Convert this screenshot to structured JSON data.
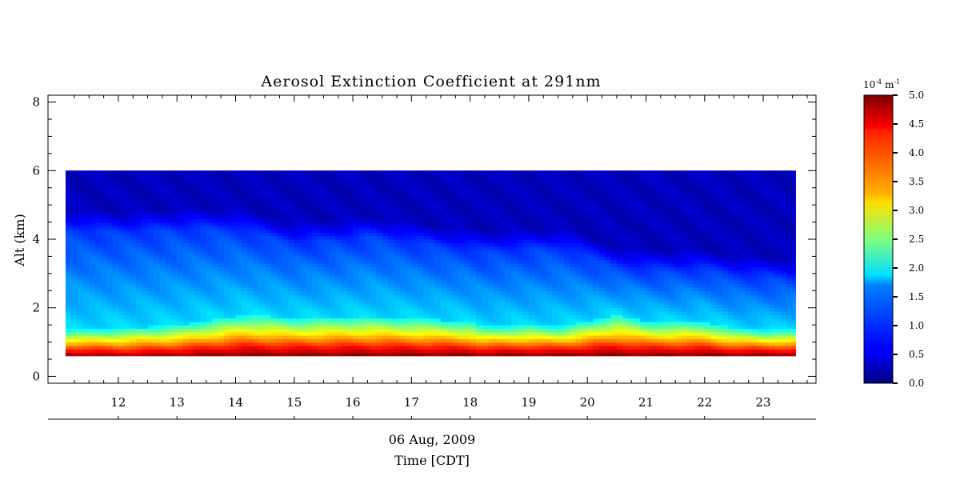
{
  "chart_data": {
    "type": "heatmap",
    "title": "Aerosol Extinction Coefficient at 291nm",
    "ylabel": "Alt (km)",
    "date_label": "06 Aug, 2009",
    "xlabel": "Time [CDT]",
    "xlim": [
      10.8,
      23.9
    ],
    "ylim": [
      -0.2,
      8.2
    ],
    "x_ticks": [
      12,
      13,
      14,
      15,
      16,
      17,
      18,
      19,
      20,
      21,
      22,
      23
    ],
    "y_ticks": [
      0,
      2,
      4,
      6,
      8
    ],
    "data_time_range": [
      11.1,
      23.55
    ],
    "data_alt_range": [
      0.6,
      6.0
    ],
    "colorbar": {
      "unit_base": "10",
      "unit_exp": "-4",
      "unit_m": "m",
      "unit_m_exp": "-1",
      "range": [
        0.0,
        5.0
      ],
      "ticks": [
        "0.0",
        "0.5",
        "1.0",
        "1.5",
        "2.0",
        "2.5",
        "3.0",
        "3.5",
        "4.0",
        "4.5",
        "5.0"
      ],
      "colormap": "jet"
    },
    "profiles": {
      "time": [
        11.1,
        12,
        13,
        14,
        14.2,
        15,
        16,
        16.3,
        17,
        18,
        18.2,
        19,
        19.5,
        20,
        20.5,
        21,
        22,
        22.5,
        23,
        23.55
      ],
      "boundary_layer_top_km": [
        1.35,
        1.4,
        1.5,
        1.75,
        1.8,
        1.7,
        1.75,
        1.75,
        1.7,
        1.6,
        1.45,
        1.5,
        1.45,
        1.6,
        1.8,
        1.6,
        1.6,
        1.4,
        1.35,
        1.35
      ],
      "aerosol_layer_top_km": [
        4.3,
        4.2,
        4.3,
        4.3,
        4.2,
        3.9,
        4.0,
        4.1,
        3.9,
        3.7,
        3.65,
        3.7,
        3.75,
        3.5,
        3.2,
        3.1,
        3.1,
        2.95,
        2.9,
        2.85
      ],
      "surface_max": [
        5.0,
        4.8,
        4.9,
        5.0,
        5.0,
        5.0,
        5.0,
        5.0,
        5.0,
        5.0,
        5.0,
        5.0,
        5.0,
        5.0,
        5.0,
        5.0,
        5.0,
        5.0,
        5.0,
        5.0
      ]
    }
  }
}
